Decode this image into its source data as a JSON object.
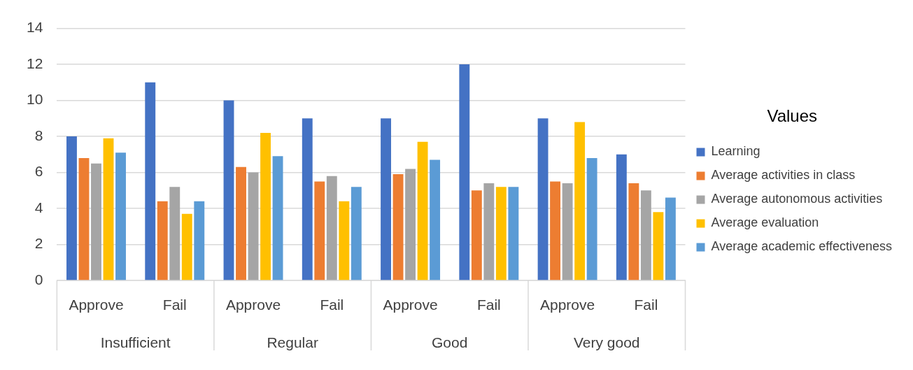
{
  "chart_data": {
    "type": "bar",
    "categories": [
      "Approve",
      "Fail",
      "Approve",
      "Fail",
      "Approve",
      "Fail",
      "Approve",
      "Fail"
    ],
    "annotations": [
      "Insufficient",
      "Regular",
      "Good",
      "Very good"
    ],
    "legend_title": "Values",
    "series": [
      {
        "name": "Learning",
        "color": "#4472c4",
        "values": [
          8,
          11,
          10,
          9,
          9,
          12,
          9,
          7
        ]
      },
      {
        "name": "Average activities in class",
        "color": "#ed7d31",
        "values": [
          6.8,
          4.4,
          6.3,
          5.5,
          5.9,
          5.0,
          5.5,
          5.4
        ]
      },
      {
        "name": "Average autonomous activities",
        "color": "#a5a5a5",
        "values": [
          6.5,
          5.2,
          6.0,
          5.8,
          6.2,
          5.4,
          5.4,
          5.0
        ]
      },
      {
        "name": "Average evaluation",
        "color": "#ffc000",
        "values": [
          7.9,
          3.7,
          8.2,
          4.4,
          7.7,
          5.2,
          8.8,
          3.8
        ]
      },
      {
        "name": "Average academic effectiveness",
        "color": "#5b9bd5",
        "values": [
          7.1,
          4.4,
          6.9,
          5.2,
          6.7,
          5.2,
          6.8,
          4.6
        ]
      }
    ],
    "ylim": [
      0,
      14
    ],
    "yticks": [
      0,
      2,
      4,
      6,
      8,
      10,
      12,
      14
    ],
    "grid": "y",
    "legend": "right"
  }
}
